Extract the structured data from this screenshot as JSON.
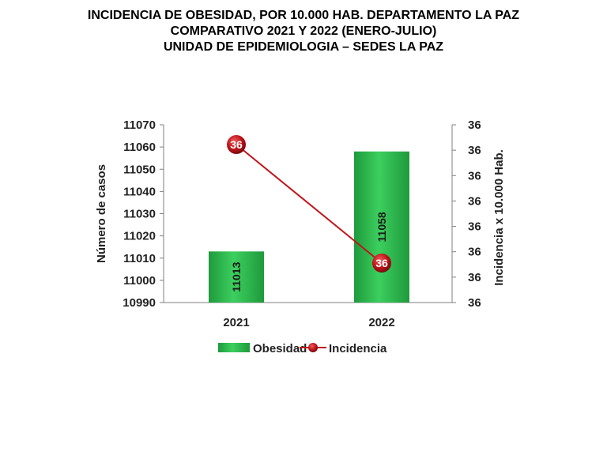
{
  "title": {
    "line1": "INCIDENCIA  DE OBESIDAD,  POR 10.000 HAB. DEPARTAMENTO  LA PAZ",
    "line2": "COMPARATIVO  2021 Y 2022 (ENERO-JULIO)",
    "line3": "UNIDAD DE EPIDEMIOLOGIA – SEDES LA PAZ"
  },
  "chart_data": {
    "type": "bar",
    "categories": [
      "2021",
      "2022"
    ],
    "series": [
      {
        "name": "Obesidad",
        "type": "bar",
        "axis": "left",
        "values": [
          11013,
          11058
        ],
        "labels": [
          "11013",
          "11058"
        ],
        "color": "#2bb24a"
      },
      {
        "name": "Incidencia",
        "type": "line",
        "axis": "right",
        "values": [
          36.4,
          36.1
        ],
        "labels": [
          "36",
          "36"
        ],
        "color": "#c0141a"
      }
    ],
    "ylabel": "Número de casos",
    "y2label": "Incidencia x 10.000 Hab.",
    "ylim": [
      10990,
      11070
    ],
    "yticks": [
      "11070",
      "11060",
      "11050",
      "11040",
      "11030",
      "11020",
      "11010",
      "11000",
      "10990"
    ],
    "y2ticks": [
      "36",
      "36",
      "36",
      "36",
      "36",
      "36",
      "36",
      "36"
    ],
    "legend_position": "bottom",
    "grid": false
  }
}
